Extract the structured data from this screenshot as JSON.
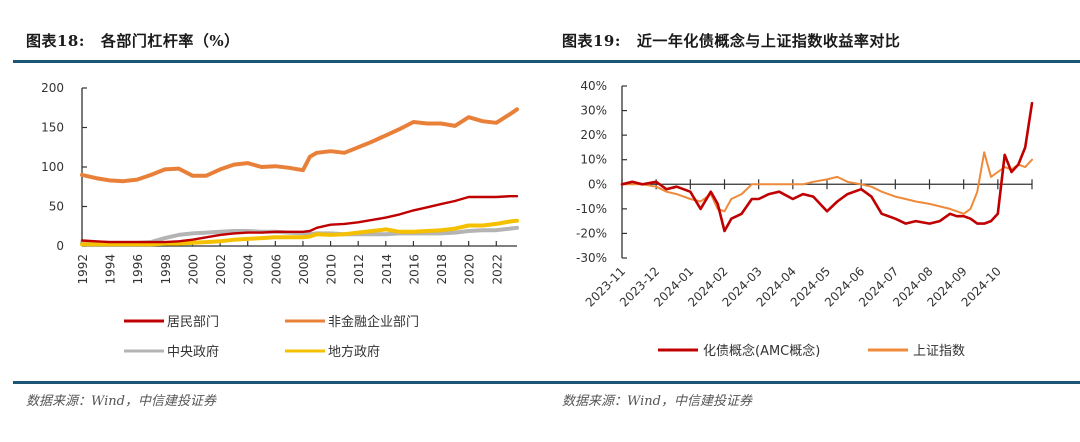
{
  "colors": {
    "rule": "#1d5577",
    "household": "#c00000",
    "corporate": "#e8803a",
    "central_gov": "#b4b4b4",
    "local_gov": "#f5c000",
    "amc": "#c00000",
    "sse": "#ef8a3a"
  },
  "left_panel": {
    "fig_num": "图表18:",
    "fig_title": "各部门杠杆率（%）",
    "source": "数据来源：Wind，中信建投证券"
  },
  "right_panel": {
    "fig_num": "图表19:",
    "fig_title": "近一年化债概念与上证指数收益率对比",
    "source": "数据来源：Wind，中信建投证券"
  },
  "chart_data": [
    {
      "type": "line",
      "title": "各部门杠杆率（%）",
      "xlabel": "",
      "ylabel": "",
      "ylim": [
        0,
        200
      ],
      "yticks": [
        "0",
        "50",
        "100",
        "150",
        "200"
      ],
      "xlim": [
        1992,
        2023.5
      ],
      "xticks": [
        "1992",
        "1994",
        "1996",
        "1998",
        "2000",
        "2002",
        "2004",
        "2006",
        "2008",
        "2010",
        "2012",
        "2014",
        "2016",
        "2018",
        "2020",
        "2022"
      ],
      "grid": false,
      "legend_position": "bottom",
      "x": [
        1992,
        1993,
        1994,
        1995,
        1996,
        1997,
        1998,
        1999,
        2000,
        2001,
        2002,
        2003,
        2004,
        2005,
        2006,
        2007,
        2008,
        2008.5,
        2009,
        2010,
        2011,
        2012,
        2013,
        2014,
        2015,
        2016,
        2017,
        2018,
        2019,
        2020,
        2021,
        2022,
        2023,
        2023.5
      ],
      "series": [
        {
          "name": "居民部门",
          "color_key": "household",
          "values": [
            7,
            6,
            5,
            5,
            5,
            5,
            5,
            6,
            8,
            11,
            14,
            16,
            17,
            17,
            18,
            18,
            18,
            19,
            23,
            27,
            28,
            30,
            33,
            36,
            40,
            45,
            49,
            53,
            57,
            62,
            62,
            62,
            63,
            63
          ]
        },
        {
          "name": "非金融企业部门",
          "color_key": "corporate",
          "values": [
            90,
            86,
            83,
            82,
            84,
            90,
            97,
            98,
            89,
            89,
            97,
            103,
            105,
            100,
            101,
            99,
            96,
            113,
            118,
            120,
            118,
            125,
            132,
            140,
            148,
            157,
            155,
            155,
            152,
            163,
            158,
            156,
            167,
            173
          ]
        },
        {
          "name": "中央政府",
          "color_key": "central_gov",
          "values": [
            4,
            4,
            4,
            4,
            4,
            5,
            10,
            14,
            16,
            17,
            18,
            19,
            19,
            18,
            18,
            17,
            16,
            15,
            16,
            16,
            15,
            15,
            15,
            15,
            16,
            16,
            16,
            16,
            17,
            19,
            20,
            20,
            22,
            23
          ]
        },
        {
          "name": "地方政府",
          "color_key": "local_gov",
          "values": [
            2,
            2,
            2,
            2,
            2,
            2,
            3,
            3,
            4,
            5,
            6,
            8,
            9,
            10,
            11,
            11,
            11,
            12,
            15,
            14,
            15,
            17,
            19,
            21,
            18,
            18,
            19,
            20,
            22,
            26,
            26,
            28,
            31,
            32
          ]
        }
      ]
    },
    {
      "type": "line",
      "title": "近一年化债概念与上证指数收益率对比",
      "xlabel": "",
      "ylabel": "",
      "ylim": [
        -30,
        40
      ],
      "yticks": [
        "-30%",
        "-20%",
        "-10%",
        "0%",
        "10%",
        "20%",
        "30%",
        "40%"
      ],
      "xlim": [
        0,
        12
      ],
      "xticks": [
        "2023-11",
        "2023-12",
        "2024-01",
        "2024-02",
        "2024-03",
        "2024-04",
        "2024-05",
        "2024-06",
        "2024-07",
        "2024-08",
        "2024-09",
        "2024-10"
      ],
      "grid": false,
      "legend_position": "bottom",
      "x": [
        0,
        0.3,
        0.6,
        1.0,
        1.3,
        1.6,
        2.0,
        2.3,
        2.6,
        2.8,
        3.0,
        3.2,
        3.5,
        3.8,
        4.0,
        4.3,
        4.6,
        5.0,
        5.3,
        5.6,
        6.0,
        6.3,
        6.6,
        7.0,
        7.3,
        7.6,
        8.0,
        8.3,
        8.6,
        9.0,
        9.3,
        9.6,
        9.8,
        10.0,
        10.2,
        10.4,
        10.6,
        10.8,
        11.0,
        11.2,
        11.4,
        11.6,
        11.8,
        12.0
      ],
      "series": [
        {
          "name": "化债概念(AMC概念)",
          "color_key": "amc",
          "values": [
            0,
            1,
            0,
            1,
            -2,
            -1,
            -3,
            -10,
            -3,
            -8,
            -19,
            -14,
            -12,
            -6,
            -6,
            -4,
            -3,
            -6,
            -4,
            -5,
            -11,
            -7,
            -4,
            -2,
            -5,
            -12,
            -14,
            -16,
            -15,
            -16,
            -15,
            -12,
            -13,
            -13,
            -14,
            -16,
            -16,
            -15,
            -12,
            12,
            5,
            8,
            15,
            33
          ]
        },
        {
          "name": "上证指数",
          "color_key": "sse",
          "values": [
            0,
            0,
            0,
            -1,
            -3,
            -4,
            -6,
            -7,
            -4,
            -10,
            -11,
            -6,
            -4,
            0,
            0,
            0,
            0,
            0,
            0,
            1,
            2,
            3,
            1,
            0,
            -1,
            -3,
            -5,
            -6,
            -7,
            -8,
            -9,
            -10,
            -11,
            -12,
            -10,
            -3,
            13,
            3,
            5,
            7,
            6,
            8,
            7,
            10
          ]
        }
      ]
    }
  ]
}
